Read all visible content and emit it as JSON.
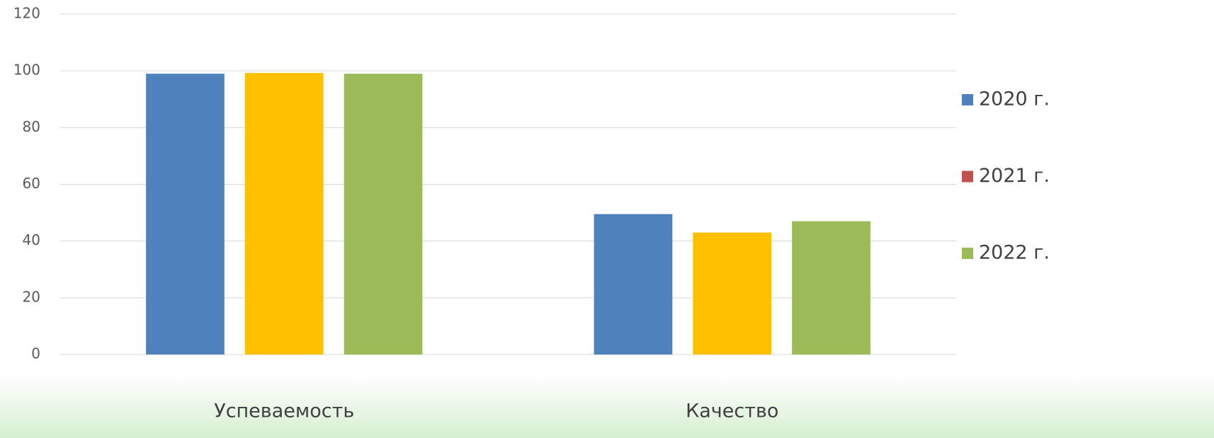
{
  "chart_data": {
    "type": "bar",
    "categories": [
      "Успеваемость",
      "Качество"
    ],
    "series": [
      {
        "name": "2020 г.",
        "color": "#4f81bd",
        "values": [
          99,
          49.5
        ]
      },
      {
        "name": "2021 г.",
        "color": "#ffc000",
        "legend_color": "#c0504d",
        "values": [
          99.25,
          43
        ]
      },
      {
        "name": "2022 г.",
        "color": "#9bbb59",
        "values": [
          99,
          47
        ]
      }
    ],
    "ylim": [
      0,
      120
    ],
    "yticks": [
      0,
      20,
      40,
      60,
      80,
      100,
      120
    ],
    "grid": true,
    "legend": "right"
  }
}
